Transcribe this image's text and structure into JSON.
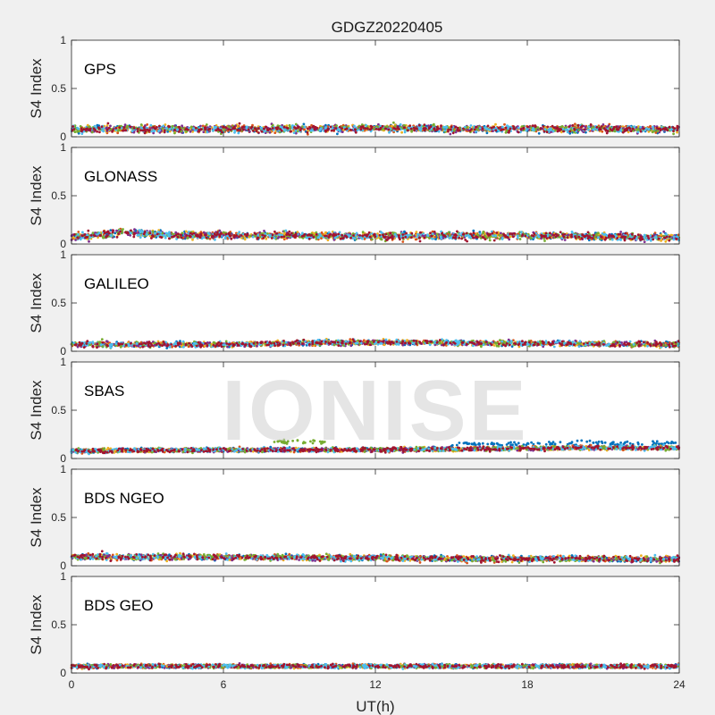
{
  "figure": {
    "title": "GDGZ20220405",
    "xlabel": "UT(h)",
    "watermark": "IONISE"
  },
  "series_colors": [
    "#0072bd",
    "#d95319",
    "#edb120",
    "#7e2f8e",
    "#77ac30",
    "#4dbeee",
    "#a2142f"
  ],
  "chart_data": [
    {
      "type": "scatter",
      "panel": "GPS",
      "label": "GPS",
      "ylabel": "S4 Index",
      "xlim": [
        0,
        24
      ],
      "ylim": [
        0,
        1
      ],
      "xticks": [
        "0",
        "6",
        "12",
        "18",
        "24"
      ],
      "yticks": [
        "0",
        "0.5",
        "1"
      ],
      "grid": false,
      "profile": {
        "x": [
          0,
          4,
          8,
          12,
          16,
          20,
          24
        ],
        "y_mean": [
          0.08,
          0.08,
          0.08,
          0.09,
          0.08,
          0.08,
          0.08
        ]
      },
      "noise": 0.035,
      "points_per_series": 320
    },
    {
      "type": "scatter",
      "panel": "GLONASS",
      "label": "GLONASS",
      "ylabel": "S4 Index",
      "xlim": [
        0,
        24
      ],
      "ylim": [
        0,
        1
      ],
      "xticks": [
        "0",
        "6",
        "12",
        "18",
        "24"
      ],
      "yticks": [
        "0",
        "0.5",
        "1"
      ],
      "grid": false,
      "profile": {
        "x": [
          0,
          2,
          4,
          8,
          12,
          16,
          20,
          24
        ],
        "y_mean": [
          0.07,
          0.12,
          0.09,
          0.09,
          0.08,
          0.09,
          0.08,
          0.07
        ]
      },
      "noise": 0.035,
      "points_per_series": 320
    },
    {
      "type": "scatter",
      "panel": "GALILEO",
      "label": "GALILEO",
      "ylabel": "S4 Index",
      "xlim": [
        0,
        24
      ],
      "ylim": [
        0,
        1
      ],
      "xticks": [
        "0",
        "6",
        "12",
        "18",
        "24"
      ],
      "yticks": [
        "0",
        "0.5",
        "1"
      ],
      "grid": false,
      "profile": {
        "x": [
          0,
          6,
          10,
          14,
          18,
          24
        ],
        "y_mean": [
          0.07,
          0.07,
          0.09,
          0.09,
          0.08,
          0.07
        ]
      },
      "noise": 0.022,
      "points_per_series": 300
    },
    {
      "type": "scatter",
      "panel": "SBAS",
      "label": "SBAS",
      "ylabel": "S4 Index",
      "xlim": [
        0,
        24
      ],
      "ylim": [
        0,
        1
      ],
      "xticks": [
        "0",
        "6",
        "12",
        "18",
        "24"
      ],
      "yticks": [
        "0",
        "0.5",
        "1"
      ],
      "grid": false,
      "profile": {
        "x": [
          0,
          8,
          12,
          16,
          20,
          24
        ],
        "y_mean": [
          0.08,
          0.09,
          0.09,
          0.1,
          0.11,
          0.11
        ]
      },
      "noise": 0.015,
      "points_per_series": 360
    },
    {
      "type": "scatter",
      "panel": "BDS NGEO",
      "label": "BDS NGEO",
      "ylabel": "S4 Index",
      "xlim": [
        0,
        24
      ],
      "ylim": [
        0,
        1
      ],
      "xticks": [
        "0",
        "6",
        "12",
        "18",
        "24"
      ],
      "yticks": [
        "0",
        "0.5",
        "1"
      ],
      "grid": false,
      "profile": {
        "x": [
          0,
          6,
          12,
          18,
          24
        ],
        "y_mean": [
          0.09,
          0.09,
          0.08,
          0.07,
          0.07
        ]
      },
      "noise": 0.025,
      "points_per_series": 320
    },
    {
      "type": "scatter",
      "panel": "BDS GEO",
      "label": "BDS GEO",
      "ylabel": "S4 Index",
      "xlim": [
        0,
        24
      ],
      "ylim": [
        0,
        1
      ],
      "xticks": [
        "0",
        "6",
        "12",
        "18",
        "24"
      ],
      "yticks": [
        "0",
        "0.5",
        "1"
      ],
      "grid": false,
      "profile": {
        "x": [
          0,
          24
        ],
        "y_mean": [
          0.07,
          0.07
        ]
      },
      "noise": 0.012,
      "points_per_series": 360
    }
  ]
}
